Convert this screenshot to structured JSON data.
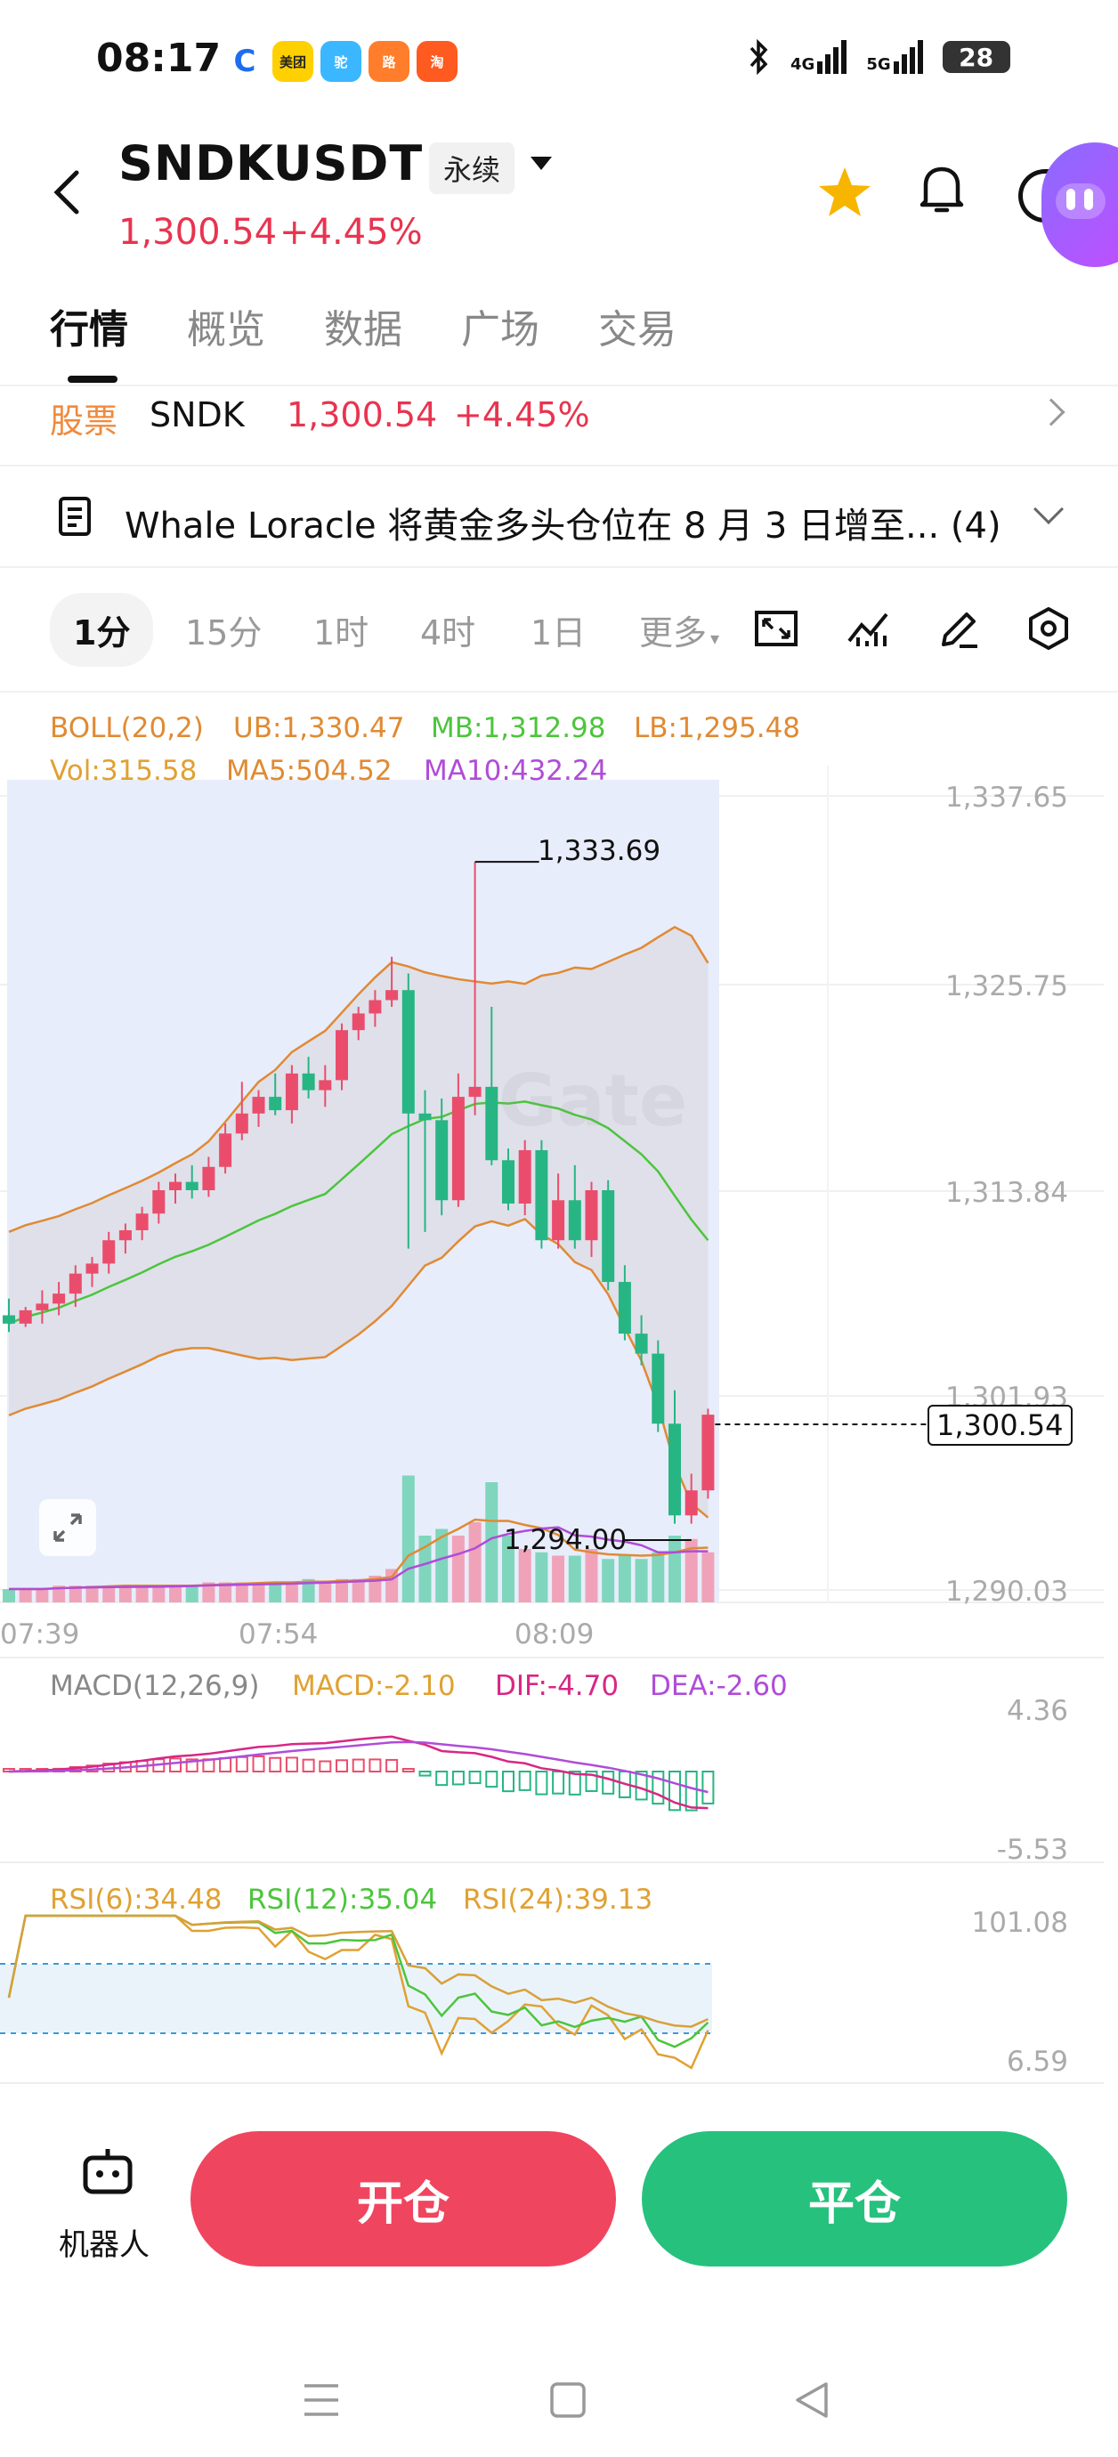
{
  "status_bar": {
    "time": "08:17",
    "app_icons": [
      "meituan-icon",
      "meituan-waimai-icon",
      "fliggy-icon",
      "amap-icon",
      "taobao-icon"
    ],
    "app_icon_labels": [
      "C",
      "美团",
      "驼",
      "路",
      "淘"
    ],
    "network1": "4G",
    "network2": "5G",
    "battery": "28"
  },
  "header": {
    "pair": "SNDKUSDT",
    "contract_type": "永续",
    "price": "1,300.54",
    "change": "+4.45%"
  },
  "tabs": [
    "行情",
    "概览",
    "数据",
    "广场",
    "交易"
  ],
  "stock_row": {
    "tag": "股票",
    "symbol": "SNDK",
    "price": "1,300.54",
    "change": "+4.45%"
  },
  "news": {
    "text": "Whale Loracle 将黄金多头仓位在 8 月 3 日增至...",
    "count": "(4)"
  },
  "intervals": {
    "active": "1分",
    "items": [
      "15分",
      "1时",
      "4时",
      "1日",
      "更多"
    ]
  },
  "chart_data": {
    "type": "candlestick",
    "symbol": "SNDKUSDT",
    "interval": "1分",
    "legend": {
      "boll": "BOLL(20,2)",
      "ub": "UB:1,330.47",
      "mb": "MB:1,312.98",
      "lb": "LB:1,295.48",
      "vol": "Vol:315.58",
      "ma5": "MA5:504.52",
      "ma10": "MA10:432.24"
    },
    "y_ticks": [
      "1,337.65",
      "1,325.75",
      "1,313.84",
      "1,301.93",
      "1,290.03"
    ],
    "x_ticks": [
      "07:39",
      "07:54",
      "08:09"
    ],
    "ylim": [
      1290.03,
      1337.65
    ],
    "high_label": "1,333.69",
    "low_label": "1,294.00",
    "last_price": "1,300.54",
    "candles": [
      [
        1306.5,
        1307.5,
        1305.5,
        1306.0
      ],
      [
        1306.0,
        1307.0,
        1305.8,
        1306.8
      ],
      [
        1306.8,
        1308.0,
        1306.0,
        1307.2
      ],
      [
        1307.2,
        1308.5,
        1306.5,
        1307.8
      ],
      [
        1307.8,
        1309.5,
        1307.0,
        1309.0
      ],
      [
        1309.0,
        1310.0,
        1308.2,
        1309.6
      ],
      [
        1309.6,
        1311.5,
        1309.0,
        1311.0
      ],
      [
        1311.0,
        1312.0,
        1310.2,
        1311.6
      ],
      [
        1311.6,
        1313.0,
        1311.0,
        1312.6
      ],
      [
        1312.6,
        1314.5,
        1312.0,
        1314.0
      ],
      [
        1314.0,
        1315.0,
        1313.2,
        1314.5
      ],
      [
        1314.5,
        1315.5,
        1313.5,
        1314.0
      ],
      [
        1314.0,
        1316.0,
        1313.6,
        1315.4
      ],
      [
        1315.4,
        1318.0,
        1315.0,
        1317.4
      ],
      [
        1317.4,
        1320.5,
        1317.0,
        1318.6
      ],
      [
        1318.6,
        1320.0,
        1317.8,
        1319.6
      ],
      [
        1319.6,
        1321.0,
        1318.5,
        1318.8
      ],
      [
        1318.8,
        1321.5,
        1318.0,
        1321.0
      ],
      [
        1321.0,
        1322.0,
        1319.5,
        1320.0
      ],
      [
        1320.0,
        1321.5,
        1319.0,
        1320.6
      ],
      [
        1320.6,
        1324.0,
        1320.0,
        1323.6
      ],
      [
        1323.6,
        1325.0,
        1323.0,
        1324.6
      ],
      [
        1324.6,
        1326.0,
        1323.8,
        1325.4
      ],
      [
        1325.4,
        1328.0,
        1325.0,
        1326.0
      ],
      [
        1326.0,
        1327.0,
        1310.5,
        1318.6
      ],
      [
        1318.6,
        1320.0,
        1311.5,
        1318.2
      ],
      [
        1318.2,
        1319.5,
        1312.5,
        1313.4
      ],
      [
        1313.4,
        1321.0,
        1313.0,
        1319.6
      ],
      [
        1319.6,
        1333.69,
        1318.5,
        1320.2
      ],
      [
        1320.2,
        1325.0,
        1315.5,
        1315.8
      ],
      [
        1315.8,
        1316.5,
        1312.8,
        1313.2
      ],
      [
        1313.2,
        1317.0,
        1312.5,
        1316.4
      ],
      [
        1316.4,
        1317.0,
        1310.5,
        1311.0
      ],
      [
        1311.0,
        1315.0,
        1310.5,
        1313.4
      ],
      [
        1313.4,
        1315.5,
        1310.5,
        1311.0
      ],
      [
        1311.0,
        1314.5,
        1310.0,
        1314.0
      ],
      [
        1314.0,
        1314.6,
        1308.0,
        1308.5
      ],
      [
        1308.5,
        1309.5,
        1305.0,
        1305.4
      ],
      [
        1305.4,
        1306.5,
        1303.5,
        1304.2
      ],
      [
        1304.2,
        1305.0,
        1299.5,
        1300.0
      ],
      [
        1300.0,
        1302.0,
        1294.0,
        1294.5
      ],
      [
        1294.5,
        1297.0,
        1294.0,
        1296.0
      ],
      [
        1296.0,
        1300.9,
        1295.5,
        1300.54
      ]
    ],
    "volume": [
      4,
      4,
      4,
      5,
      5,
      5,
      5,
      5,
      5,
      5,
      5,
      5,
      6,
      6,
      6,
      6,
      6,
      6,
      7,
      6,
      7,
      7,
      8,
      10,
      38,
      20,
      22,
      20,
      24,
      36,
      20,
      16,
      15,
      14,
      14,
      16,
      13,
      14,
      13,
      15,
      20,
      19,
      15
    ],
    "macd_legend": {
      "label": "MACD(12,26,9)",
      "macd": "MACD:-2.10",
      "dif": "DIF:-4.70",
      "dea": "DEA:-2.60"
    },
    "macd_ticks": [
      "4.36",
      "-5.53"
    ],
    "rsi_legend": {
      "rsi6": "RSI(6):34.48",
      "rsi12": "RSI(12):35.04",
      "rsi24": "RSI(24):39.13"
    },
    "rsi_ticks": [
      "101.08",
      "6.59"
    ],
    "watermark": "Gate",
    "colors": {
      "up": "#ea4d6c",
      "down": "#27b584",
      "ub": "#e08a33",
      "mb": "#4cc53c",
      "lb": "#e08a33",
      "ma10": "#b04cd8",
      "dif": "#d82785",
      "dea": "#b04cd8"
    }
  },
  "bottom": {
    "robot": "机器人",
    "open": "开仓",
    "close": "平仓"
  }
}
